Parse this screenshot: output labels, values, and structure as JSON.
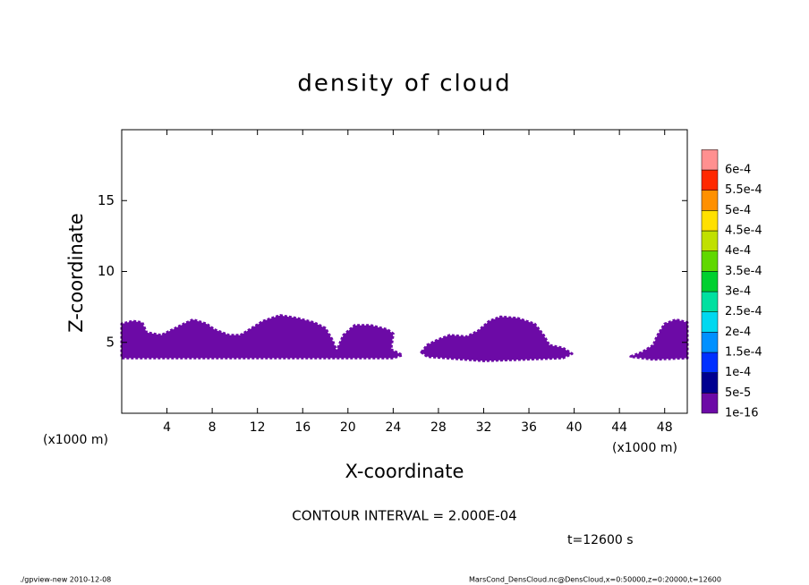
{
  "chart_data": {
    "type": "contour",
    "title": "density of cloud",
    "x_label": "X-coordinate",
    "y_label": "Z-coordinate",
    "x_unit_label_left": "(x1000 m)",
    "x_unit_label_right": "(x1000 m)",
    "contour_interval": "CONTOUR INTERVAL = 2.000E-04",
    "time_label": "t=12600 s",
    "footer_left": "./gpview-new  2010-12-08",
    "footer_right": "MarsCond_DensCloud.nc@DensCloud,x=0:50000,z=0:20000,t=12600",
    "xlim": [
      0,
      50
    ],
    "ylim": [
      0,
      20
    ],
    "xticks": [
      4,
      8,
      12,
      16,
      20,
      24,
      28,
      32,
      36,
      40,
      44,
      48
    ],
    "yticks": [
      5,
      10,
      15
    ],
    "regions": [
      {
        "color": "#6c0aa6",
        "x": [
          0,
          0,
          1,
          1.8,
          2.2,
          3.5,
          4.5,
          5.5,
          6.3,
          7.5,
          8.2,
          9.5,
          10.5,
          11.5,
          12.5,
          14,
          15.5,
          17,
          18,
          18.6,
          19,
          19.6,
          20.6,
          22,
          23.5,
          24,
          23.8,
          24.8,
          24,
          0
        ],
        "y": [
          4.0,
          6.3,
          6.5,
          6.4,
          5.7,
          5.5,
          5.9,
          6.3,
          6.6,
          6.3,
          5.9,
          5.5,
          5.5,
          6.0,
          6.5,
          6.9,
          6.7,
          6.4,
          6.0,
          5.2,
          4.4,
          5.5,
          6.2,
          6.2,
          5.9,
          5.6,
          4.5,
          4.1,
          3.9,
          3.9
        ]
      },
      {
        "color": "#6c0aa6",
        "x": [
          26.5,
          27,
          28,
          29,
          30.5,
          31.5,
          32.5,
          33.5,
          35,
          36.5,
          37.3,
          37.8,
          39,
          39.8,
          39,
          32,
          27
        ],
        "y": [
          4.3,
          4.8,
          5.2,
          5.5,
          5.4,
          5.8,
          6.5,
          6.8,
          6.7,
          6.3,
          5.5,
          4.8,
          4.6,
          4.2,
          3.9,
          3.7,
          4.0
        ]
      },
      {
        "color": "#6c0aa6",
        "x": [
          45,
          46,
          47,
          47.3,
          48,
          49,
          50,
          50,
          47
        ],
        "y": [
          4.0,
          4.3,
          4.8,
          5.4,
          6.3,
          6.6,
          6.4,
          3.9,
          3.8
        ]
      }
    ],
    "colorbar": {
      "levels": [
        {
          "value": 1e-16,
          "label": "1e-16"
        },
        {
          "value": 5e-05,
          "label": "5e-5"
        },
        {
          "value": 0.0001,
          "label": "1e-4"
        },
        {
          "value": 0.00015,
          "label": "1.5e-4"
        },
        {
          "value": 0.0002,
          "label": "2e-4"
        },
        {
          "value": 0.00025,
          "label": "2.5e-4"
        },
        {
          "value": 0.0003,
          "label": "3e-4"
        },
        {
          "value": 0.00035,
          "label": "3.5e-4"
        },
        {
          "value": 0.0004,
          "label": "4e-4"
        },
        {
          "value": 0.00045,
          "label": "4.5e-4"
        },
        {
          "value": 0.0005,
          "label": "5e-4"
        },
        {
          "value": 0.00055,
          "label": "5.5e-4"
        },
        {
          "value": 0.0006,
          "label": "6e-4"
        }
      ],
      "colors": [
        "#6c0aa6",
        "#000090",
        "#0030ff",
        "#0090ff",
        "#00d8f0",
        "#00e0a0",
        "#00d030",
        "#60d800",
        "#c0e000",
        "#ffe000",
        "#ff9000",
        "#ff2800",
        "#ff9090"
      ]
    }
  }
}
